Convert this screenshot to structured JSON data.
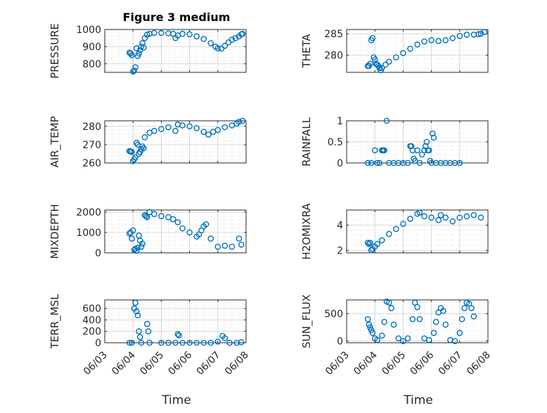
{
  "title": "Figure 3 medium",
  "marker_color": "#0072bd",
  "chart_data": [
    {
      "type": "scatter",
      "id": "pressure",
      "ylabel": "PRESSURE",
      "ylim": [
        750,
        1000
      ],
      "yticks": [
        800,
        900,
        1000
      ],
      "xlim": [
        "06/03",
        "06/08"
      ],
      "xticks": [
        "06/03",
        "06/04",
        "06/05",
        "06/06",
        "06/07",
        "06/08"
      ],
      "grid": true,
      "points": [
        [
          "06/03 21:00",
          865
        ],
        [
          "06/03 22:00",
          860
        ],
        [
          "06/03 23:00",
          850
        ],
        [
          "06/04 00:00",
          755
        ],
        [
          "06/04 01:00",
          760
        ],
        [
          "06/04 02:00",
          780
        ],
        [
          "06/04 03:00",
          890
        ],
        [
          "06/04 04:00",
          845
        ],
        [
          "06/04 05:00",
          860
        ],
        [
          "06/04 06:00",
          880
        ],
        [
          "06/04 07:00",
          900
        ],
        [
          "06/04 08:00",
          920
        ],
        [
          "06/04 09:00",
          895
        ],
        [
          "06/04 10:00",
          950
        ],
        [
          "06/04 12:00",
          970
        ],
        [
          "06/04 14:00",
          975
        ],
        [
          "06/04 18:00",
          980
        ],
        [
          "06/05 00:00",
          980
        ],
        [
          "06/05 06:00",
          978
        ],
        [
          "06/05 10:00",
          975
        ],
        [
          "06/05 12:00",
          950
        ],
        [
          "06/05 14:00",
          965
        ],
        [
          "06/05 18:00",
          975
        ],
        [
          "06/06 00:00",
          972
        ],
        [
          "06/06 06:00",
          960
        ],
        [
          "06/06 12:00",
          945
        ],
        [
          "06/06 18:00",
          920
        ],
        [
          "06/06 22:00",
          900
        ],
        [
          "06/07 00:00",
          890
        ],
        [
          "06/07 03:00",
          888
        ],
        [
          "06/07 06:00",
          905
        ],
        [
          "06/07 09:00",
          925
        ],
        [
          "06/07 12:00",
          940
        ],
        [
          "06/07 15:00",
          950
        ],
        [
          "06/07 18:00",
          960
        ],
        [
          "06/07 20:00",
          972
        ],
        [
          "06/07 21:00",
          975
        ]
      ]
    },
    {
      "type": "scatter",
      "id": "theta",
      "ylabel": "THETA",
      "ylim": [
        276,
        286
      ],
      "yticks": [
        280,
        285
      ],
      "xlim": [
        "06/03",
        "06/08"
      ],
      "xticks": [
        "06/03",
        "06/04",
        "06/05",
        "06/06",
        "06/07",
        "06/08"
      ],
      "grid": true,
      "points": [
        [
          "06/03 18:00",
          277.5
        ],
        [
          "06/03 19:00",
          277.5
        ],
        [
          "06/03 20:00",
          278.0
        ],
        [
          "06/03 21:00",
          283.5
        ],
        [
          "06/03 22:00",
          284.0
        ],
        [
          "06/03 23:00",
          279.5
        ],
        [
          "06/04 00:00",
          279.0
        ],
        [
          "06/04 01:00",
          278.0
        ],
        [
          "06/04 02:00",
          277.8
        ],
        [
          "06/04 03:00",
          277.5
        ],
        [
          "06/04 04:00",
          277.0
        ],
        [
          "06/04 05:00",
          276.5
        ],
        [
          "06/04 06:00",
          277.0
        ],
        [
          "06/04 09:00",
          277.8
        ],
        [
          "06/04 12:00",
          278.5
        ],
        [
          "06/04 18:00",
          279.5
        ],
        [
          "06/05 00:00",
          280.5
        ],
        [
          "06/05 06:00",
          281.5
        ],
        [
          "06/05 12:00",
          282.5
        ],
        [
          "06/05 18:00",
          283.2
        ],
        [
          "06/06 00:00",
          283.5
        ],
        [
          "06/06 06:00",
          283.3
        ],
        [
          "06/06 12:00",
          283.5
        ],
        [
          "06/06 18:00",
          284.0
        ],
        [
          "06/07 00:00",
          284.5
        ],
        [
          "06/07 06:00",
          284.8
        ],
        [
          "06/07 12:00",
          284.8
        ],
        [
          "06/07 16:00",
          284.9
        ],
        [
          "06/07 18:00",
          285.0
        ],
        [
          "06/07 21:00",
          285.4
        ]
      ]
    },
    {
      "type": "scatter",
      "id": "air_temp",
      "ylabel": "AIR_TEMP",
      "ylim": [
        260,
        283
      ],
      "yticks": [
        260,
        270,
        280
      ],
      "xlim": [
        "06/03",
        "06/08"
      ],
      "xticks": [
        "06/03",
        "06/04",
        "06/05",
        "06/06",
        "06/07",
        "06/08"
      ],
      "grid": true,
      "points": [
        [
          "06/03 21:00",
          266.5
        ],
        [
          "06/03 22:00",
          266.3
        ],
        [
          "06/03 23:00",
          266.0
        ],
        [
          "06/04 00:00",
          261.0
        ],
        [
          "06/04 01:00",
          262.0
        ],
        [
          "06/04 02:00",
          263.0
        ],
        [
          "06/04 03:00",
          271.0
        ],
        [
          "06/04 04:00",
          270.0
        ],
        [
          "06/04 05:00",
          265.0
        ],
        [
          "06/04 06:00",
          266.0
        ],
        [
          "06/04 07:00",
          267.5
        ],
        [
          "06/04 08:00",
          269.0
        ],
        [
          "06/04 09:00",
          268.0
        ],
        [
          "06/04 10:00",
          274.0
        ],
        [
          "06/04 14:00",
          276.5
        ],
        [
          "06/04 18:00",
          277.5
        ],
        [
          "06/05 00:00",
          278.5
        ],
        [
          "06/05 06:00",
          279.5
        ],
        [
          "06/05 12:00",
          277.5
        ],
        [
          "06/05 14:00",
          281.0
        ],
        [
          "06/05 18:00",
          280.5
        ],
        [
          "06/06 00:00",
          280.0
        ],
        [
          "06/06 06:00",
          279.0
        ],
        [
          "06/06 12:00",
          277.0
        ],
        [
          "06/06 16:00",
          275.5
        ],
        [
          "06/06 20:00",
          277.0
        ],
        [
          "06/07 00:00",
          278.0
        ],
        [
          "06/07 06:00",
          279.5
        ],
        [
          "06/07 12:00",
          280.5
        ],
        [
          "06/07 16:00",
          281.5
        ],
        [
          "06/07 18:00",
          282.5
        ],
        [
          "06/07 21:00",
          283.0
        ]
      ]
    },
    {
      "type": "scatter",
      "id": "rainfall",
      "ylabel": "RAINFALL",
      "ylim": [
        0,
        1
      ],
      "yticks": [
        0,
        0.5,
        1
      ],
      "xlim": [
        "06/03",
        "06/08"
      ],
      "xticks": [
        "06/03",
        "06/04",
        "06/05",
        "06/06",
        "06/07",
        "06/08"
      ],
      "grid": true,
      "points": [
        [
          "06/03 18:00",
          0
        ],
        [
          "06/03 21:00",
          0
        ],
        [
          "06/04 00:00",
          0.3
        ],
        [
          "06/04 02:00",
          0
        ],
        [
          "06/04 04:00",
          0
        ],
        [
          "06/04 06:00",
          0.3
        ],
        [
          "06/04 07:00",
          0.3
        ],
        [
          "06/04 08:00",
          0.3
        ],
        [
          "06/04 10:00",
          1.0
        ],
        [
          "06/04 12:00",
          0
        ],
        [
          "06/04 16:00",
          0
        ],
        [
          "06/04 20:00",
          0
        ],
        [
          "06/05 00:00",
          0
        ],
        [
          "06/05 04:00",
          0
        ],
        [
          "06/05 06:00",
          0.4
        ],
        [
          "06/05 07:00",
          0.4
        ],
        [
          "06/05 08:00",
          0.3
        ],
        [
          "06/05 09:00",
          0.1
        ],
        [
          "06/05 10:00",
          0.05
        ],
        [
          "06/05 12:00",
          0.3
        ],
        [
          "06/05 14:00",
          0
        ],
        [
          "06/05 16:00",
          0.2
        ],
        [
          "06/05 18:00",
          0.3
        ],
        [
          "06/05 19:00",
          0.4
        ],
        [
          "06/05 20:00",
          0.5
        ],
        [
          "06/05 21:00",
          0.3
        ],
        [
          "06/05 22:00",
          0.3
        ],
        [
          "06/05 23:00",
          0.05
        ],
        [
          "06/06 00:00",
          0
        ],
        [
          "06/06 01:00",
          0.7
        ],
        [
          "06/06 02:00",
          0.6
        ],
        [
          "06/06 04:00",
          0
        ],
        [
          "06/06 08:00",
          0
        ],
        [
          "06/06 12:00",
          0
        ],
        [
          "06/06 16:00",
          0
        ],
        [
          "06/06 20:00",
          0
        ],
        [
          "06/07 00:00",
          0
        ]
      ]
    },
    {
      "type": "scatter",
      "id": "mixdepth",
      "ylabel": "MIXDEPTH",
      "ylim": [
        0,
        2100
      ],
      "yticks": [
        0,
        1000,
        2000
      ],
      "xlim": [
        "06/03",
        "06/08"
      ],
      "xticks": [
        "06/03",
        "06/04",
        "06/05",
        "06/06",
        "06/07",
        "06/08"
      ],
      "grid": true,
      "points": [
        [
          "06/03 21:00",
          950
        ],
        [
          "06/03 22:00",
          1000
        ],
        [
          "06/03 23:00",
          700
        ],
        [
          "06/04 00:00",
          1100
        ],
        [
          "06/04 01:00",
          150
        ],
        [
          "06/04 02:00",
          200
        ],
        [
          "06/04 03:00",
          100
        ],
        [
          "06/04 04:00",
          250
        ],
        [
          "06/04 05:00",
          850
        ],
        [
          "06/04 06:00",
          600
        ],
        [
          "06/04 07:00",
          300
        ],
        [
          "06/04 08:00",
          450
        ],
        [
          "06/04 10:00",
          1850
        ],
        [
          "06/04 11:00",
          1800
        ],
        [
          "06/04 12:00",
          1750
        ],
        [
          "06/04 14:00",
          2000
        ],
        [
          "06/04 18:00",
          1900
        ],
        [
          "06/05 00:00",
          1800
        ],
        [
          "06/05 06:00",
          1750
        ],
        [
          "06/05 10:00",
          1650
        ],
        [
          "06/05 14:00",
          1500
        ],
        [
          "06/05 18:00",
          1200
        ],
        [
          "06/06 00:00",
          1000
        ],
        [
          "06/06 06:00",
          800
        ],
        [
          "06/06 08:00",
          900
        ],
        [
          "06/06 10:00",
          1100
        ],
        [
          "06/06 12:00",
          1300
        ],
        [
          "06/06 14:00",
          1400
        ],
        [
          "06/06 18:00",
          700
        ],
        [
          "06/07 00:00",
          300
        ],
        [
          "06/07 06:00",
          350
        ],
        [
          "06/07 12:00",
          300
        ],
        [
          "06/07 18:00",
          700
        ],
        [
          "06/07 20:00",
          400
        ]
      ]
    },
    {
      "type": "scatter",
      "id": "h2omixra",
      "ylabel": "H2OMIXRA",
      "ylim": [
        1.8,
        5.2
      ],
      "yticks": [
        2,
        4
      ],
      "xlim": [
        "06/03",
        "06/08"
      ],
      "xticks": [
        "06/03",
        "06/04",
        "06/05",
        "06/06",
        "06/07",
        "06/08"
      ],
      "grid": true,
      "points": [
        [
          "06/03 18:00",
          2.6
        ],
        [
          "06/03 19:00",
          2.5
        ],
        [
          "06/03 20:00",
          2.6
        ],
        [
          "06/03 21:00",
          2.0
        ],
        [
          "06/03 22:00",
          2.1
        ],
        [
          "06/04 00:00",
          2.3
        ],
        [
          "06/04 02:00",
          2.5
        ],
        [
          "06/04 06:00",
          2.8
        ],
        [
          "06/04 12:00",
          3.3
        ],
        [
          "06/04 18:00",
          3.7
        ],
        [
          "06/05 00:00",
          4.1
        ],
        [
          "06/05 06:00",
          4.5
        ],
        [
          "06/05 12:00",
          4.9
        ],
        [
          "06/05 14:00",
          5.0
        ],
        [
          "06/05 18:00",
          4.7
        ],
        [
          "06/06 00:00",
          4.6
        ],
        [
          "06/06 06:00",
          4.4
        ],
        [
          "06/06 08:00",
          4.8
        ],
        [
          "06/06 12:00",
          4.6
        ],
        [
          "06/06 18:00",
          4.3
        ],
        [
          "06/07 00:00",
          4.6
        ],
        [
          "06/07 06:00",
          4.7
        ],
        [
          "06/07 12:00",
          4.8
        ],
        [
          "06/07 18:00",
          4.6
        ]
      ]
    },
    {
      "type": "scatter",
      "id": "terr_msl",
      "ylabel": "TERR_MSL",
      "ylim": [
        0,
        750
      ],
      "yticks": [
        0,
        200,
        400,
        600
      ],
      "xlim": [
        "06/03",
        "06/08"
      ],
      "xticks": [
        "06/03",
        "06/04",
        "06/05",
        "06/06",
        "06/07",
        "06/08"
      ],
      "grid": true,
      "points": [
        [
          "06/03 21:00",
          0
        ],
        [
          "06/03 23:00",
          0
        ],
        [
          "06/04 01:00",
          600
        ],
        [
          "06/04 02:00",
          700
        ],
        [
          "06/04 03:00",
          550
        ],
        [
          "06/04 04:00",
          480
        ],
        [
          "06/04 05:00",
          200
        ],
        [
          "06/04 06:00",
          100
        ],
        [
          "06/04 07:00",
          0
        ],
        [
          "06/04 12:00",
          330
        ],
        [
          "06/04 13:00",
          200
        ],
        [
          "06/04 14:00",
          0
        ],
        [
          "06/05 00:00",
          0
        ],
        [
          "06/05 06:00",
          0
        ],
        [
          "06/05 12:00",
          0
        ],
        [
          "06/05 14:00",
          150
        ],
        [
          "06/05 15:00",
          130
        ],
        [
          "06/05 18:00",
          0
        ],
        [
          "06/06 00:00",
          0
        ],
        [
          "06/06 06:00",
          0
        ],
        [
          "06/06 12:00",
          0
        ],
        [
          "06/06 18:00",
          0
        ],
        [
          "06/07 00:00",
          20
        ],
        [
          "06/07 04:00",
          120
        ],
        [
          "06/07 06:00",
          80
        ],
        [
          "06/07 10:00",
          0
        ],
        [
          "06/07 16:00",
          0
        ],
        [
          "06/07 20:00",
          10
        ]
      ]
    },
    {
      "type": "scatter",
      "id": "sun_flux",
      "ylabel": "SUN_FLUX",
      "ylim": [
        -30,
        750
      ],
      "yticks": [
        0,
        500
      ],
      "xlim": [
        "06/03",
        "06/08"
      ],
      "xticks": [
        "06/03",
        "06/04",
        "06/05",
        "06/06",
        "06/07",
        "06/08"
      ],
      "grid": true,
      "points": [
        [
          "06/03 18:00",
          400
        ],
        [
          "06/03 19:00",
          300
        ],
        [
          "06/03 20:00",
          250
        ],
        [
          "06/03 21:00",
          200
        ],
        [
          "06/03 22:00",
          150
        ],
        [
          "06/04 00:00",
          50
        ],
        [
          "06/04 02:00",
          20
        ],
        [
          "06/04 06:00",
          100
        ],
        [
          "06/04 08:00",
          350
        ],
        [
          "06/04 10:00",
          720
        ],
        [
          "06/04 12:00",
          700
        ],
        [
          "06/04 14:00",
          600
        ],
        [
          "06/04 16:00",
          300
        ],
        [
          "06/04 20:00",
          50
        ],
        [
          "06/05 00:00",
          0
        ],
        [
          "06/05 04:00",
          50
        ],
        [
          "06/05 08:00",
          400
        ],
        [
          "06/05 10:00",
          700
        ],
        [
          "06/05 12:00",
          620
        ],
        [
          "06/05 14:00",
          400
        ],
        [
          "06/05 18:00",
          50
        ],
        [
          "06/05 22:00",
          20
        ],
        [
          "06/06 02:00",
          150
        ],
        [
          "06/06 04:00",
          350
        ],
        [
          "06/06 06:00",
          520
        ],
        [
          "06/06 08:00",
          600
        ],
        [
          "06/06 10:00",
          550
        ],
        [
          "06/06 12:00",
          300
        ],
        [
          "06/06 16:00",
          20
        ],
        [
          "06/06 20:00",
          0
        ],
        [
          "06/07 00:00",
          150
        ],
        [
          "06/07 02:00",
          400
        ],
        [
          "06/07 04:00",
          600
        ],
        [
          "06/07 06:00",
          700
        ],
        [
          "06/07 08:00",
          680
        ],
        [
          "06/07 10:00",
          600
        ],
        [
          "06/07 12:00",
          450
        ]
      ]
    }
  ],
  "layout_map": {
    "xlabel": "Time"
  }
}
